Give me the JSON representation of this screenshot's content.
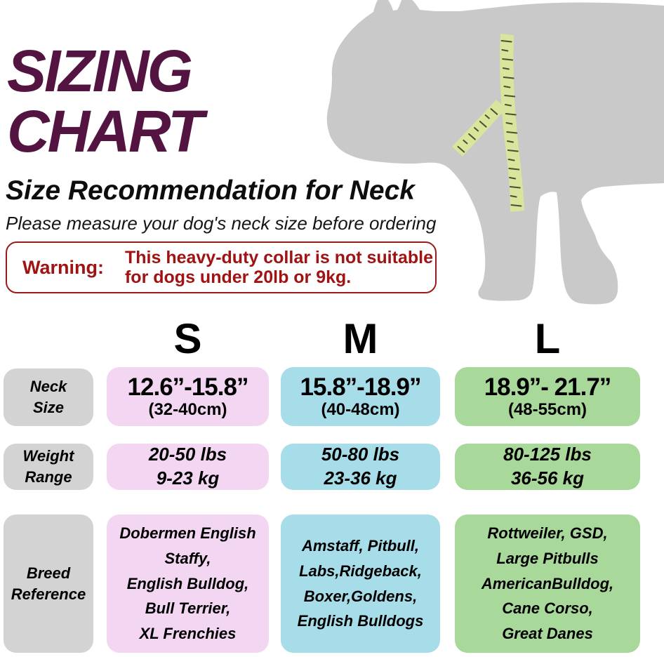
{
  "header": {
    "title": "SIZING\nCHART",
    "subtitle": "Size Recommendation for Neck",
    "note": "Please measure your dog's neck size before ordering"
  },
  "warning": {
    "label": "Warning:",
    "text": "This heavy-duty collar is not suitable\nfor dogs under 20lb or 9kg."
  },
  "dog_graphic": {
    "description": "gray dog silhouette with measuring tape around neck",
    "silhouette_color": "#c9c9c9",
    "tape_color": "#d9e49c",
    "tape_tick_color": "#4d4d30"
  },
  "colors": {
    "title_text": "#541441",
    "warning_text": "#a11212",
    "warning_border": "#9b1b1b",
    "row_label_bg": "#d3d3d3",
    "size_s_bg": "#f3d6f2",
    "size_m_bg": "#a6dde9",
    "size_l_bg": "#a9d89b"
  },
  "table": {
    "rows": [
      {
        "label": "Neck\nSize"
      },
      {
        "label": "Weight\nRange"
      },
      {
        "label": "Breed\nReference"
      }
    ],
    "columns": [
      {
        "label": "S",
        "neck_in": "12.6”-15.8”",
        "neck_cm": "(32-40cm)",
        "weight": "20-50 lbs\n9-23 kg",
        "breeds": "Dobermen English\nStaffy,\nEnglish Bulldog,\nBull Terrier,\nXL Frenchies"
      },
      {
        "label": "M",
        "neck_in": "15.8”-18.9”",
        "neck_cm": "(40-48cm)",
        "weight": "50-80 lbs\n23-36 kg",
        "breeds": "Amstaff, Pitbull,\nLabs,Ridgeback,\nBoxer,Goldens,\nEnglish Bulldogs"
      },
      {
        "label": "L",
        "neck_in": "18.9”- 21.7”",
        "neck_cm": "(48-55cm)",
        "weight": "80-125 lbs\n36-56 kg",
        "breeds": "Rottweiler, GSD,\nLarge Pitbulls\nAmericanBulldog,\nCane Corso,\nGreat Danes"
      }
    ]
  },
  "chart_data": {
    "type": "table",
    "title": "SIZING CHART",
    "column_headers": [
      "S",
      "M",
      "L"
    ],
    "row_headers": [
      "Neck Size",
      "Weight Range",
      "Breed Reference"
    ],
    "cells": [
      [
        "12.6”-15.8” (32-40cm)",
        "15.8”-18.9” (40-48cm)",
        "18.9”- 21.7” (48-55cm)"
      ],
      [
        "20-50 lbs / 9-23 kg",
        "50-80 lbs / 23-36 kg",
        "80-125 lbs / 36-56 kg"
      ],
      [
        "Dobermen English Staffy, English Bulldog, Bull Terrier, XL Frenchies",
        "Amstaff, Pitbull, Labs, Ridgeback, Boxer, Goldens, English Bulldogs",
        "Rottweiler, GSD, Large Pitbulls, AmericanBulldog, Cane Corso, Great Danes"
      ]
    ]
  }
}
